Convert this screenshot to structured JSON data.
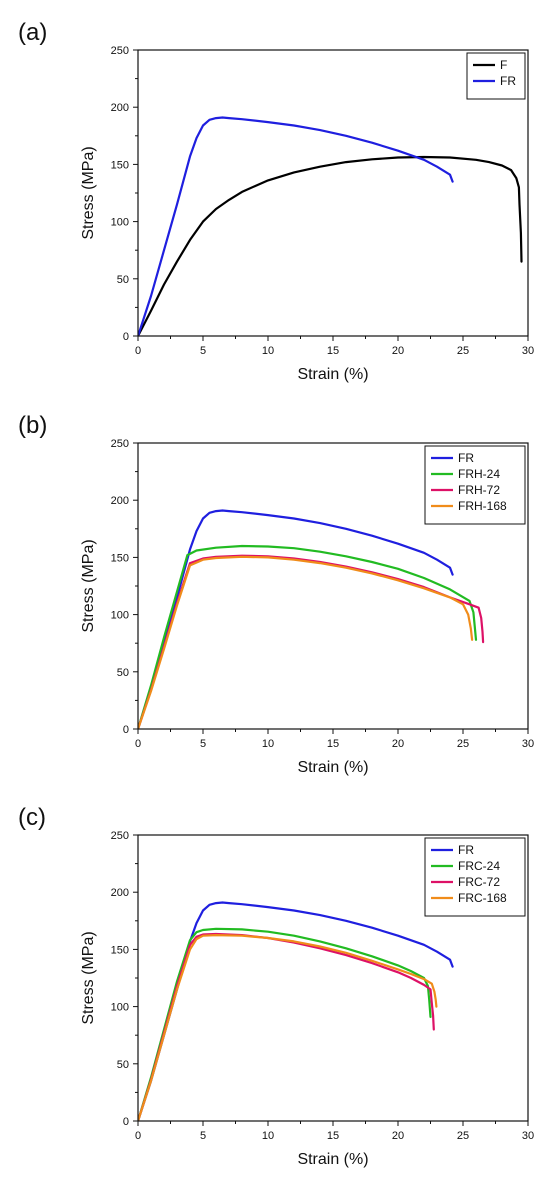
{
  "chart_data": [
    {
      "type": "line",
      "panel_label": "(a)",
      "xlabel": "Strain (%)",
      "ylabel": "Stress (MPa)",
      "xlim": [
        0,
        30
      ],
      "ylim": [
        0,
        250
      ],
      "xticks": [
        0,
        5,
        10,
        15,
        20,
        25,
        30
      ],
      "yticks": [
        0,
        50,
        100,
        150,
        200,
        250
      ],
      "grid": false,
      "legend_position": "top-right",
      "series": [
        {
          "name": "F",
          "color": "#000000",
          "x": [
            0,
            1,
            2,
            3,
            4,
            5,
            6,
            7,
            8,
            9,
            10,
            12,
            14,
            16,
            18,
            20,
            22,
            24,
            26,
            27,
            28,
            28.7,
            29.1,
            29.3,
            29.35,
            29.45,
            29.5
          ],
          "y": [
            0,
            22,
            45,
            65,
            84,
            100,
            111,
            119,
            126,
            131,
            136,
            143,
            148,
            152,
            154.5,
            156,
            156.5,
            156,
            154,
            152,
            149,
            145,
            138,
            130,
            115,
            90,
            65
          ]
        },
        {
          "name": "FR",
          "color": "#1f1fdf",
          "x": [
            0,
            1,
            2,
            3,
            4,
            4.5,
            5,
            5.5,
            6,
            6.5,
            7,
            8,
            10,
            12,
            14,
            16,
            18,
            20,
            22,
            23,
            24,
            24.2
          ],
          "y": [
            0,
            35,
            75,
            115,
            157,
            173,
            184,
            189,
            190.5,
            191,
            190.5,
            189.5,
            187,
            184,
            180,
            175,
            169,
            162,
            154,
            148,
            141,
            135
          ]
        }
      ]
    },
    {
      "type": "line",
      "panel_label": "(b)",
      "xlabel": "Strain (%)",
      "ylabel": "Stress (MPa)",
      "xlim": [
        0,
        30
      ],
      "ylim": [
        0,
        250
      ],
      "xticks": [
        0,
        5,
        10,
        15,
        20,
        25,
        30
      ],
      "yticks": [
        0,
        50,
        100,
        150,
        200,
        250
      ],
      "grid": false,
      "legend_position": "top-right",
      "series": [
        {
          "name": "FR",
          "color": "#1f1fdf",
          "x": [
            0,
            1,
            2,
            3,
            4,
            4.5,
            5,
            5.5,
            6,
            6.5,
            7,
            8,
            10,
            12,
            14,
            16,
            18,
            20,
            22,
            23,
            24,
            24.2
          ],
          "y": [
            0,
            35,
            75,
            115,
            157,
            173,
            184,
            189,
            190.5,
            191,
            190.5,
            189.5,
            187,
            184,
            180,
            175,
            169,
            162,
            154,
            148,
            141,
            135
          ]
        },
        {
          "name": "FRH-24",
          "color": "#22bb22",
          "x": [
            0,
            1,
            2,
            3,
            3.8,
            4.5,
            6,
            8,
            10,
            12,
            14,
            16,
            18,
            20,
            22,
            24,
            25.5,
            25.8,
            25.9,
            26.0
          ],
          "y": [
            0,
            38,
            80,
            120,
            152,
            156,
            158.5,
            160,
            159.5,
            158,
            155,
            151,
            146,
            140,
            132,
            122,
            112,
            102,
            90,
            78
          ]
        },
        {
          "name": "FRH-72",
          "color": "#dd1166",
          "x": [
            0,
            1,
            2,
            3,
            4,
            5,
            6,
            8,
            10,
            12,
            14,
            16,
            18,
            20,
            22,
            24,
            25.5,
            26.2,
            26.4,
            26.5,
            26.55
          ],
          "y": [
            0,
            34,
            72,
            110,
            145,
            149,
            150.5,
            151.5,
            151,
            149,
            146,
            142,
            137,
            131,
            124,
            115,
            109,
            106,
            97,
            85,
            76
          ]
        },
        {
          "name": "FRH-168",
          "color": "#f08c1a",
          "x": [
            0,
            1,
            2,
            3,
            4,
            5,
            6,
            8,
            10,
            12,
            14,
            16,
            18,
            20,
            22,
            24,
            25,
            25.4,
            25.6,
            25.7
          ],
          "y": [
            0,
            33,
            70,
            108,
            143,
            148,
            149.5,
            150.5,
            150,
            148,
            145,
            141,
            136,
            130,
            123,
            115,
            109,
            100,
            88,
            78
          ]
        }
      ]
    },
    {
      "type": "line",
      "panel_label": "(c)",
      "xlabel": "Strain (%)",
      "ylabel": "Stress (MPa)",
      "xlim": [
        0,
        30
      ],
      "ylim": [
        0,
        250
      ],
      "xticks": [
        0,
        5,
        10,
        15,
        20,
        25,
        30
      ],
      "yticks": [
        0,
        50,
        100,
        150,
        200,
        250
      ],
      "grid": false,
      "legend_position": "top-right",
      "series": [
        {
          "name": "FR",
          "color": "#1f1fdf",
          "x": [
            0,
            1,
            2,
            3,
            4,
            4.5,
            5,
            5.5,
            6,
            6.5,
            7,
            8,
            10,
            12,
            14,
            16,
            18,
            20,
            22,
            23,
            24,
            24.2
          ],
          "y": [
            0,
            35,
            75,
            115,
            157,
            173,
            184,
            189,
            190.5,
            191,
            190.5,
            189.5,
            187,
            184,
            180,
            175,
            169,
            162,
            154,
            148,
            141,
            135
          ]
        },
        {
          "name": "FRC-24",
          "color": "#22bb22",
          "x": [
            0,
            1,
            2,
            3,
            4,
            4.5,
            5,
            6,
            8,
            10,
            12,
            14,
            16,
            18,
            20,
            21,
            22,
            22.3,
            22.4,
            22.5
          ],
          "y": [
            0,
            38,
            80,
            122,
            158,
            165,
            167,
            168,
            167.5,
            165.5,
            162,
            157,
            151,
            144,
            136,
            131,
            125,
            118,
            106,
            91
          ]
        },
        {
          "name": "FRC-72",
          "color": "#dd1166",
          "x": [
            0,
            1,
            2,
            3,
            4,
            4.5,
            5,
            6,
            8,
            10,
            12,
            14,
            16,
            18,
            20,
            21,
            22,
            22.5,
            22.6,
            22.7,
            22.75
          ],
          "y": [
            0,
            36,
            77,
            118,
            154,
            161,
            163,
            163.5,
            162.5,
            160,
            156,
            151,
            145,
            138,
            130,
            125,
            119,
            115,
            103,
            92,
            80
          ]
        },
        {
          "name": "FRC-168",
          "color": "#f08c1a",
          "x": [
            0,
            1,
            2,
            3,
            4,
            4.5,
            5,
            6,
            8,
            10,
            12,
            14,
            16,
            18,
            20,
            21,
            22,
            22.6,
            22.8,
            22.9,
            22.95
          ],
          "y": [
            0,
            35,
            75,
            115,
            150,
            159,
            162,
            162.5,
            162,
            160,
            157,
            152.5,
            147,
            140,
            132.5,
            128.5,
            124,
            120,
            113,
            106,
            100
          ]
        }
      ]
    }
  ]
}
